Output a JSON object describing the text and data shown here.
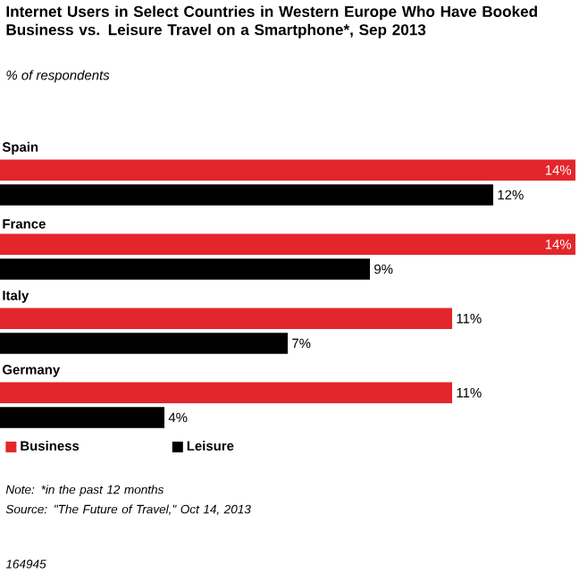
{
  "chart_data": {
    "type": "bar",
    "orientation": "horizontal",
    "title": "Internet Users in Select Countries in Western Europe Who Have Booked Business vs. Leisure Travel on a Smartphone*, Sep 2013",
    "subtitle": "% of respondents",
    "categories": [
      "Spain",
      "France",
      "Italy",
      "Germany"
    ],
    "series": [
      {
        "name": "Business",
        "color": "#e3262c",
        "values": [
          14,
          14,
          11,
          11
        ],
        "value_labels": [
          "14%",
          "14%",
          "11%",
          "11%"
        ]
      },
      {
        "name": "Leisure",
        "color": "#000000",
        "values": [
          12,
          9,
          7,
          4
        ],
        "value_labels": [
          "12%",
          "9%",
          "7%",
          "4%"
        ]
      }
    ],
    "legend": "bottom",
    "annotations": [
      "Note: *in the past 12 months",
      "Source: \"The Future of Travel,\" Oct 14, 2013",
      "164945"
    ]
  }
}
